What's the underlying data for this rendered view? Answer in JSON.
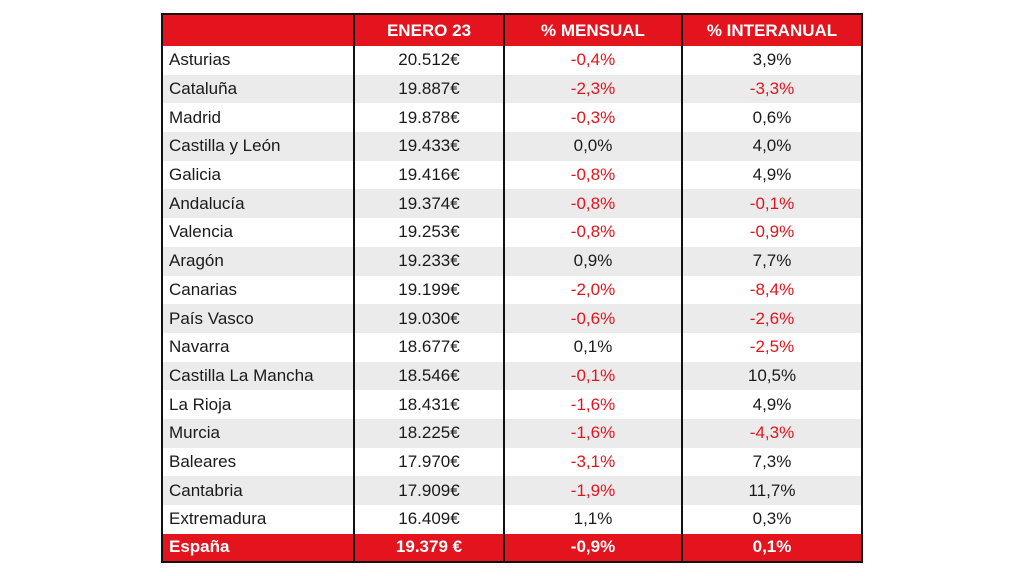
{
  "table": {
    "headers": [
      "",
      "ENERO 23",
      "% MENSUAL",
      "% INTERANUAL"
    ],
    "rows": [
      {
        "region": "Asturias",
        "value": "20.512€",
        "monthly": "-0,4%",
        "yearly": "3,9%"
      },
      {
        "region": "Cataluña",
        "value": "19.887€",
        "monthly": "-2,3%",
        "yearly": "-3,3%"
      },
      {
        "region": "Madrid",
        "value": "19.878€",
        "monthly": "-0,3%",
        "yearly": "0,6%"
      },
      {
        "region": "Castilla y León",
        "value": "19.433€",
        "monthly": "0,0%",
        "yearly": "4,0%"
      },
      {
        "region": "Galicia",
        "value": "19.416€",
        "monthly": "-0,8%",
        "yearly": "4,9%"
      },
      {
        "region": "Andalucía",
        "value": "19.374€",
        "monthly": "-0,8%",
        "yearly": "-0,1%"
      },
      {
        "region": "Valencia",
        "value": "19.253€",
        "monthly": "-0,8%",
        "yearly": "-0,9%"
      },
      {
        "region": "Aragón",
        "value": "19.233€",
        "monthly": "0,9%",
        "yearly": "7,7%"
      },
      {
        "region": "Canarias",
        "value": "19.199€",
        "monthly": "-2,0%",
        "yearly": "-8,4%"
      },
      {
        "region": "País Vasco",
        "value": "19.030€",
        "monthly": "-0,6%",
        "yearly": "-2,6%"
      },
      {
        "region": "Navarra",
        "value": "18.677€",
        "monthly": "0,1%",
        "yearly": "-2,5%"
      },
      {
        "region": "Castilla La Mancha",
        "value": "18.546€",
        "monthly": "-0,1%",
        "yearly": "10,5%"
      },
      {
        "region": "La Rioja",
        "value": "18.431€",
        "monthly": "-1,6%",
        "yearly": "4,9%"
      },
      {
        "region": "Murcia",
        "value": "18.225€",
        "monthly": "-1,6%",
        "yearly": "-4,3%"
      },
      {
        "region": "Baleares",
        "value": "17.970€",
        "monthly": "-3,1%",
        "yearly": "7,3%"
      },
      {
        "region": "Cantabria",
        "value": "17.909€",
        "monthly": "-1,9%",
        "yearly": "11,7%"
      },
      {
        "region": "Extremadura",
        "value": "16.409€",
        "monthly": "1,1%",
        "yearly": "0,3%"
      }
    ],
    "total": {
      "region": "España",
      "value": "19.379 €",
      "monthly": "-0,9%",
      "yearly": "0,1%"
    }
  },
  "colors": {
    "accent_red": "#e3141e",
    "negative_text": "#e3141e",
    "stripe_grey": "#ebebeb",
    "border": "#111111"
  }
}
